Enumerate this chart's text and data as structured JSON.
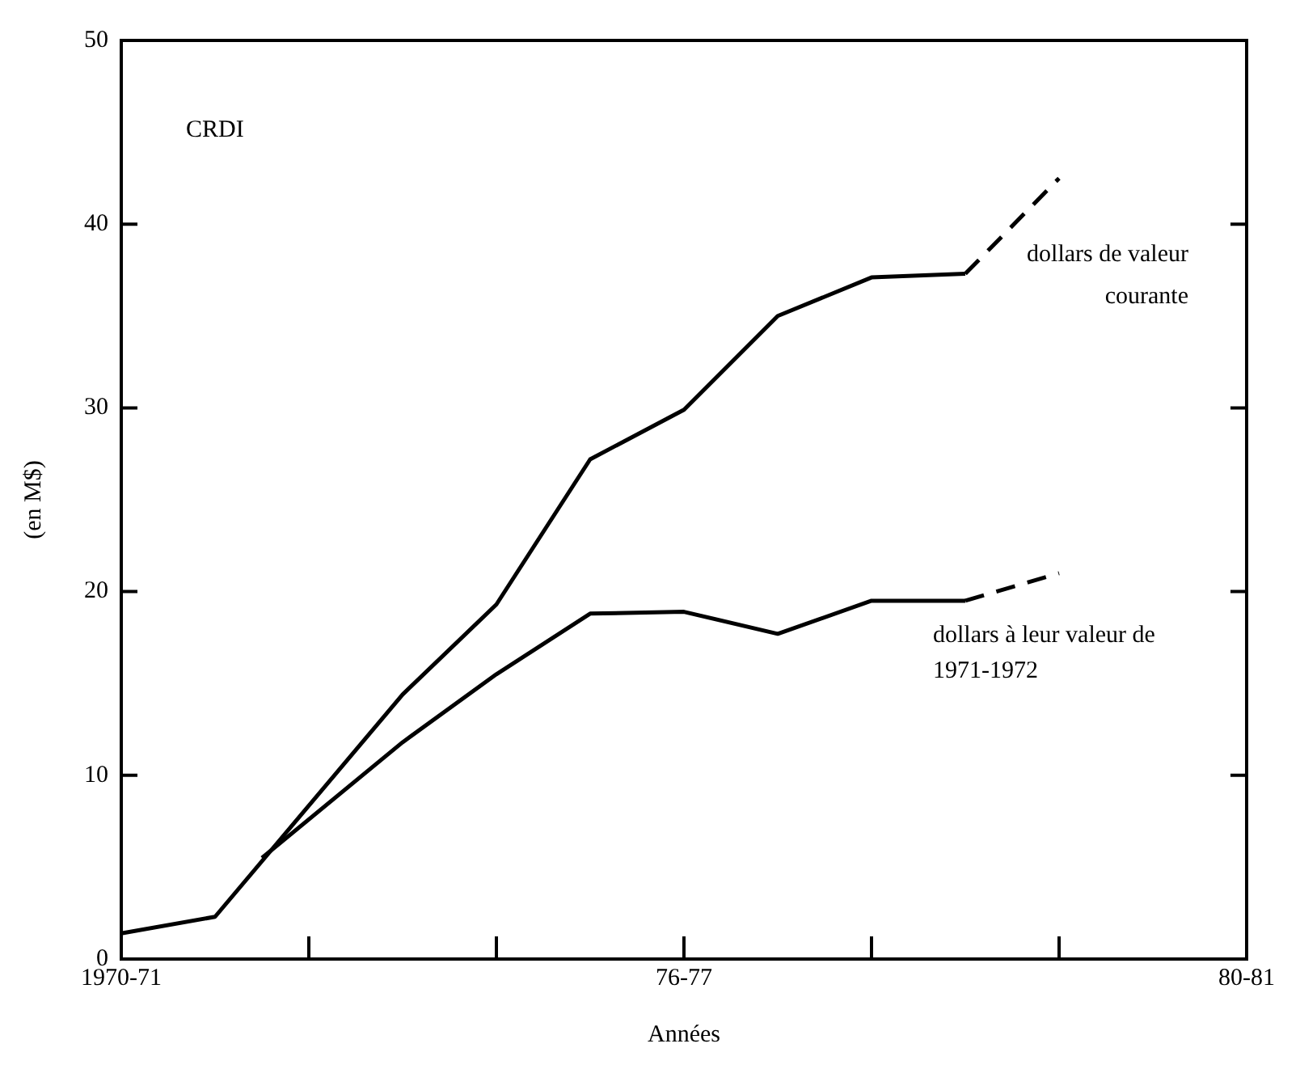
{
  "chart_data": {
    "type": "line",
    "xlabel": "Années",
    "ylabel": "(en M$)",
    "annotations": [
      "CRDI"
    ],
    "categories": [
      "1970-71",
      null,
      null,
      null,
      null,
      null,
      null,
      null,
      null,
      null,
      null,
      null,
      "76-77",
      null,
      null,
      null,
      null,
      null,
      null,
      null,
      null,
      null,
      null,
      null,
      "80-81"
    ],
    "ylim": [
      0,
      50
    ],
    "yticks": [
      0,
      10,
      20,
      30,
      40,
      50
    ],
    "grid": false,
    "legend": false,
    "marker": "none",
    "series": [
      {
        "color": "#000000",
        "line_style": "solid",
        "values": [
          1.4,
          null,
          2.3,
          null,
          null,
          null,
          14.4,
          null,
          19.3,
          null,
          27.2,
          null,
          29.9,
          null,
          35,
          null,
          37.1,
          null,
          37.3,
          null,
          null,
          null,
          null,
          null,
          null
        ]
      },
      {
        "name": "dollars de valeur courante",
        "color": "#000000",
        "line_style": "dashed",
        "values": [
          null,
          null,
          null,
          null,
          null,
          null,
          null,
          null,
          null,
          null,
          null,
          null,
          null,
          null,
          null,
          null,
          null,
          null,
          37.3,
          null,
          42.5,
          null,
          null,
          null,
          null
        ]
      },
      {
        "color": "#000000",
        "line_style": "solid",
        "values": [
          null,
          null,
          null,
          5.5,
          null,
          null,
          11.8,
          null,
          15.5,
          null,
          18.8,
          null,
          18.9,
          null,
          17.7,
          null,
          19.5,
          null,
          19.5,
          null,
          null,
          null,
          null,
          null,
          null
        ]
      },
      {
        "name": "dollars à leur valeur de 1971-1972",
        "color": "#000000",
        "line_style": "dashed",
        "values": [
          null,
          null,
          null,
          null,
          null,
          null,
          null,
          null,
          null,
          null,
          null,
          null,
          null,
          null,
          null,
          null,
          null,
          null,
          19.5,
          null,
          21,
          null,
          null,
          null,
          null
        ]
      }
    ]
  }
}
